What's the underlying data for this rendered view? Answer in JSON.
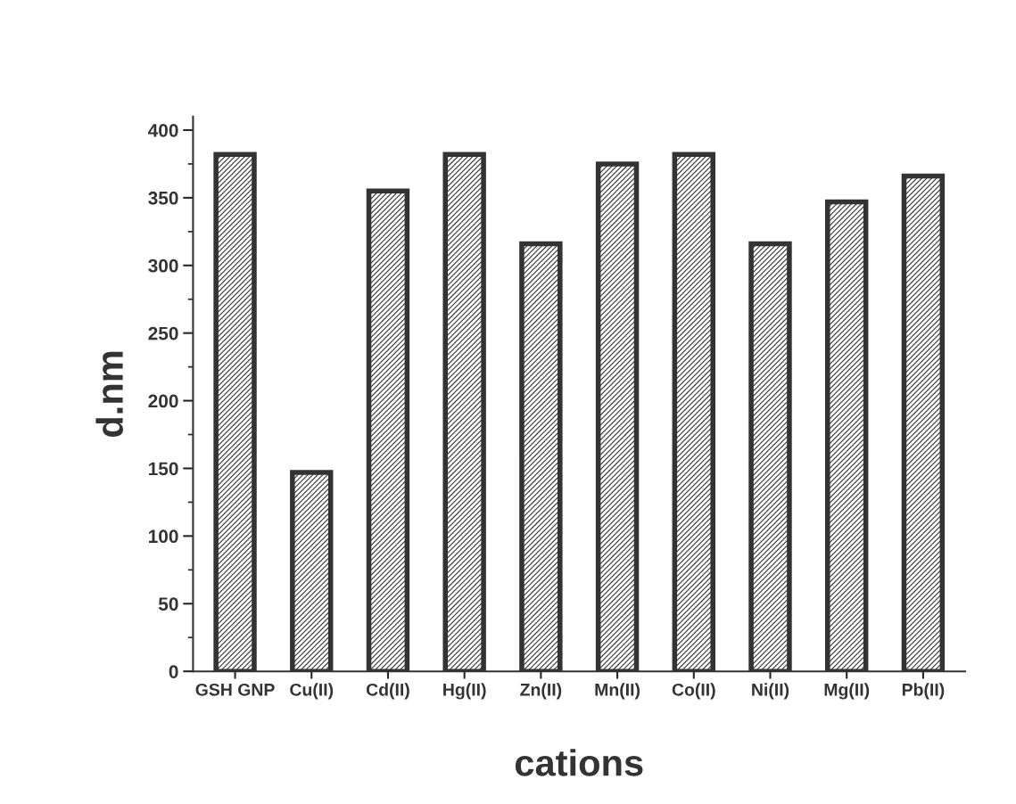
{
  "chart_data": {
    "type": "bar",
    "categories": [
      "GSH GNP",
      "Cu(II)",
      "Cd(II)",
      "Hg(II)",
      "Zn(II)",
      "Mn(II)",
      "Co(II)",
      "Ni(II)",
      "Mg(II)",
      "Pb(II)"
    ],
    "values": [
      382,
      147,
      355,
      382,
      316,
      375,
      382,
      316,
      347,
      366
    ],
    "color": "#333333",
    "xlabel": "cations",
    "ylabel": "d.nm",
    "ylim": [
      0,
      410
    ],
    "yticks": [
      0,
      50,
      100,
      150,
      200,
      250,
      300,
      350,
      400
    ],
    "grid": false,
    "legend": false
  }
}
